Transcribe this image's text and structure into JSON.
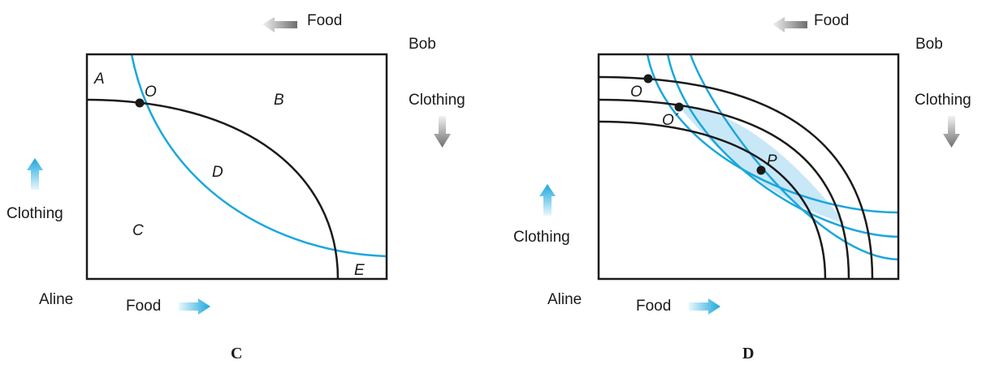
{
  "colors": {
    "frame": "#1a1a1a",
    "black_curve": "#1a1a1a",
    "blue_curve": "#1aa7dc",
    "lens_fill": "#c8e8f8",
    "arrow_gray": "#707070",
    "arrow_blue": "#2bb3e8"
  },
  "panel_c": {
    "top_food": "Food",
    "top_person": "Bob",
    "right_clothing": "Clothing",
    "left_clothing": "Clothing",
    "bottom_person": "Aline",
    "bottom_food": "Food",
    "caption": "C",
    "regions": {
      "a": "A",
      "b": "B",
      "c": "C",
      "d": "D",
      "e": "E"
    },
    "point_label": "O",
    "icons": {
      "top": "left-arrow-icon",
      "right": "down-arrow-icon",
      "left": "up-arrow-icon",
      "bottom": "right-arrow-icon"
    }
  },
  "panel_d": {
    "top_food": "Food",
    "top_person": "Bob",
    "right_clothing": "Clothing",
    "left_clothing": "Clothing",
    "bottom_person": "Aline",
    "bottom_food": "Food",
    "caption": "D",
    "point_labels": {
      "o": "O",
      "o_prime": "O´",
      "p": "P"
    },
    "icons": {
      "top": "left-arrow-icon",
      "right": "down-arrow-icon",
      "left": "up-arrow-icon",
      "bottom": "right-arrow-icon"
    }
  }
}
